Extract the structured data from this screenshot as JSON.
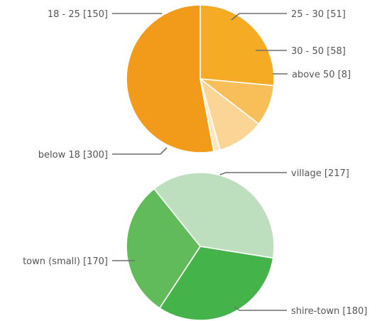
{
  "chart_data": [
    {
      "type": "pie",
      "title": "",
      "slices": [
        {
          "label": "18 - 25 [150]",
          "value": 150,
          "color": "#f6ab24"
        },
        {
          "label": "25 - 30 [51]",
          "value": 51,
          "color": "#f8be58"
        },
        {
          "label": "30 - 50 [58]",
          "value": 58,
          "color": "#fad595"
        },
        {
          "label": "above 50 [8]",
          "value": 8,
          "color": "#fce7c0"
        },
        {
          "label": "below 18 [300]",
          "value": 300,
          "color": "#f29b1b"
        }
      ]
    },
    {
      "type": "pie",
      "title": "",
      "slices": [
        {
          "label": "village [217]",
          "value": 217,
          "color": "#bddfbe"
        },
        {
          "label": "shire-town [180]",
          "value": 180,
          "color": "#43b34a"
        },
        {
          "label": "town (small) [170]",
          "value": 170,
          "color": "#62bb5b"
        }
      ]
    }
  ]
}
